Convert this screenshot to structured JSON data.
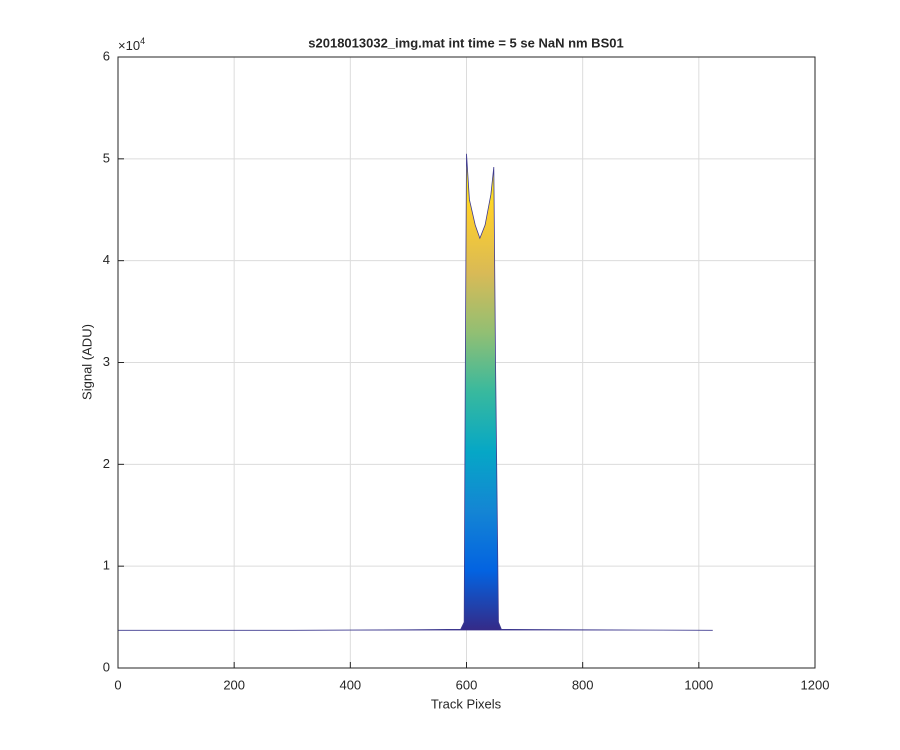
{
  "chart_data": {
    "type": "area",
    "title": "s2018013032_img.mat int time = 5 se  NaN nm BS01",
    "x_label": "Track Pixels",
    "y_label": "Signal (ADU)",
    "y_multiplier": {
      "base": "×10",
      "exponent": "4"
    },
    "x": [
      0,
      300,
      500,
      590,
      596,
      598,
      600,
      605,
      615,
      623,
      632,
      642,
      647,
      650,
      655,
      660,
      800,
      1024
    ],
    "values": [
      3700,
      3700,
      3750,
      3800,
      4500,
      30000,
      50500,
      46000,
      43500,
      42200,
      43500,
      46500,
      49200,
      30000,
      4500,
      3800,
      3750,
      3700
    ],
    "line_color": "#3e3a8f",
    "colormap": [
      "#352a87",
      "#0363e1",
      "#1485d4",
      "#06a7c6",
      "#38b99e",
      "#92bf73",
      "#d9ba56",
      "#fcce2e",
      "#f9fb0e"
    ],
    "xlim": [
      0,
      1200
    ],
    "xticks": [
      0,
      200,
      400,
      600,
      800,
      1000,
      1200
    ],
    "ylim": [
      0,
      60000
    ],
    "yticks": [
      {
        "value": 0,
        "label": "0"
      },
      {
        "value": 10000,
        "label": "1"
      },
      {
        "value": 20000,
        "label": "2"
      },
      {
        "value": 30000,
        "label": "3"
      },
      {
        "value": 40000,
        "label": "4"
      },
      {
        "value": 50000,
        "label": "5"
      },
      {
        "value": 60000,
        "label": "6"
      }
    ],
    "grid": true
  }
}
